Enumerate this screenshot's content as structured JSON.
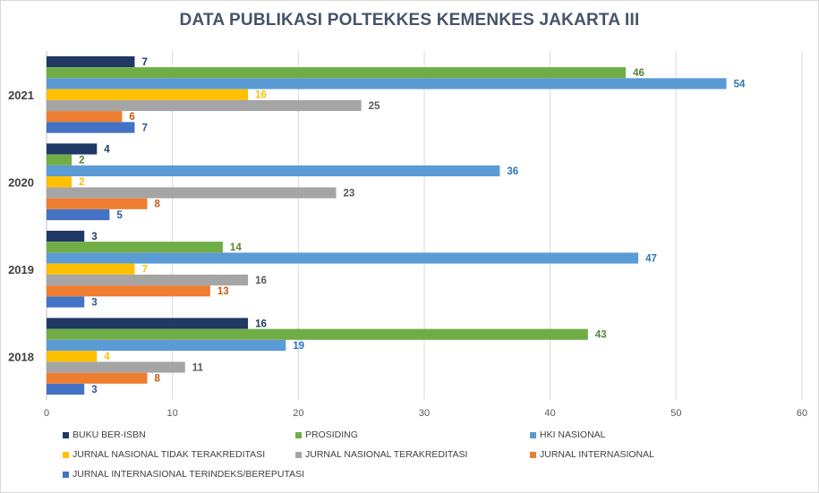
{
  "chart_data": {
    "type": "bar",
    "orientation": "horizontal",
    "title": "DATA PUBLIKASI POLTEKKES  KEMENKES  JAKARTA III",
    "categories": [
      "2021",
      "2020",
      "2019",
      "2018"
    ],
    "series": [
      {
        "name": "BUKU BER-ISBN",
        "color": "#203864",
        "label_color": "#203864",
        "values": [
          7,
          4,
          3,
          16
        ]
      },
      {
        "name": "PROSIDING",
        "color": "#70ad47",
        "label_color": "#548235",
        "values": [
          46,
          2,
          14,
          43
        ]
      },
      {
        "name": "HKI NASIONAL",
        "color": "#5b9bd5",
        "label_color": "#2e75b6",
        "values": [
          54,
          36,
          47,
          19
        ]
      },
      {
        "name": "JURNAL NASIONAL TIDAK TERAKREDITASI",
        "color": "#ffc000",
        "label_color": "#ffc000",
        "values": [
          16,
          2,
          7,
          4
        ]
      },
      {
        "name": "JURNAL NASIONAL TERAKREDITASI",
        "color": "#a5a5a5",
        "label_color": "#595959",
        "values": [
          25,
          23,
          16,
          11
        ]
      },
      {
        "name": "JURNAL INTERNASIONAL",
        "color": "#ed7d31",
        "label_color": "#c55a11",
        "values": [
          6,
          8,
          13,
          8
        ]
      },
      {
        "name": "JURNAL INTERNASIONAL TERINDEKS/BEREPUTASI",
        "color": "#4472c4",
        "label_color": "#2f5597",
        "values": [
          7,
          5,
          3,
          3
        ]
      }
    ],
    "xlim": [
      0,
      60
    ],
    "xticks": [
      "0",
      "10",
      "20",
      "30",
      "40",
      "50",
      "60"
    ],
    "grid": true,
    "legend_position": "bottom"
  }
}
